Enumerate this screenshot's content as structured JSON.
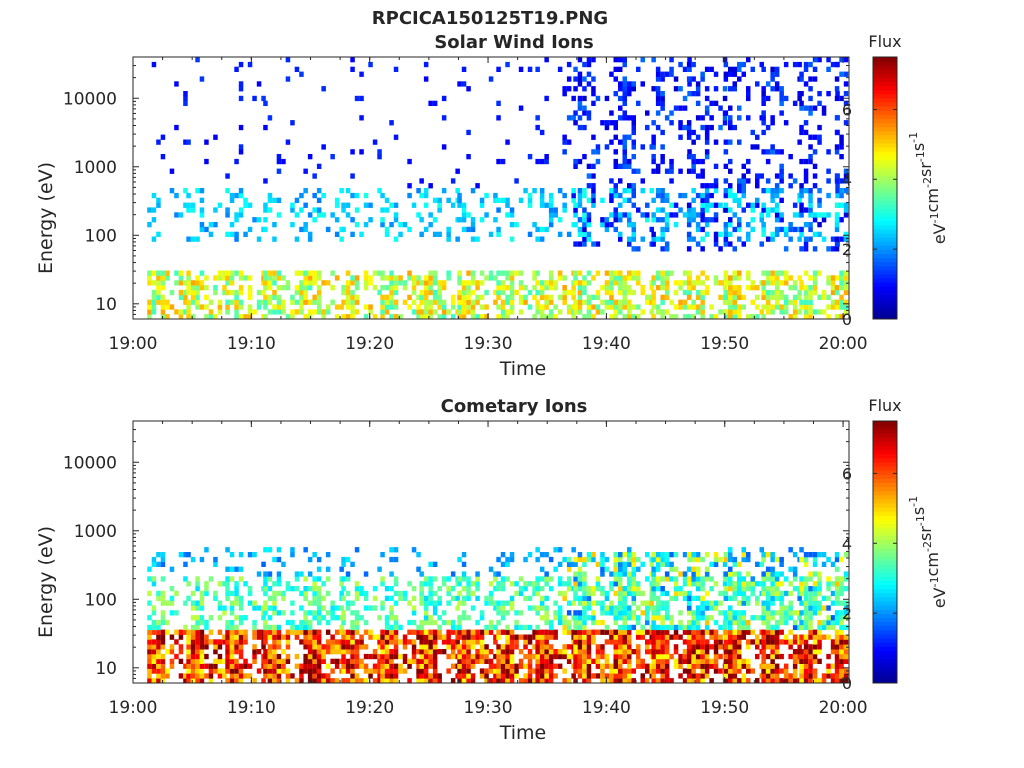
{
  "figure_title": "RPCICA150125T19.PNG",
  "colors": {
    "colormap": [
      "#00008f",
      "#0000ff",
      "#0080ff",
      "#00ffff",
      "#80ff80",
      "#ffff00",
      "#ff8000",
      "#ff0000",
      "#800000"
    ],
    "axes": "#262626",
    "background": "#ffffff"
  },
  "chart_data": [
    {
      "type": "heatmap",
      "title": "Solar Wind Ions",
      "xlabel": "Time",
      "ylabel": "Energy (eV)",
      "x_range": [
        "19:00",
        "20:00"
      ],
      "xticks": [
        "19:00",
        "19:10",
        "19:20",
        "19:30",
        "19:40",
        "19:50",
        "20:00"
      ],
      "y_scale": "log",
      "y_range": [
        6,
        40000
      ],
      "yticks": [
        10,
        100,
        1000,
        10000
      ],
      "ytick_labels": [
        "10",
        "100",
        "1000",
        "10000"
      ],
      "colorbar": {
        "title": "Flux",
        "unit_base": [
          "eV",
          "cm",
          "sr",
          "s"
        ],
        "unit_exp": [
          "-1",
          "-2",
          "-1",
          "-1"
        ],
        "range": [
          0,
          7.5
        ],
        "ticks": [
          "0",
          "2",
          "4",
          "6"
        ]
      },
      "sweep_start_minutes": [
        1.2,
        4.5,
        7.8,
        11.0,
        14.4,
        17.6,
        20.9,
        24.2,
        27.4,
        30.7,
        34.0,
        37.2,
        40.6,
        43.8,
        46.8,
        49.9,
        53.1,
        56.3,
        59.3
      ],
      "bands": [
        {
          "e_min": 6,
          "e_max": 30,
          "flux": 4.3,
          "coverage": 0.7
        },
        {
          "e_min": 80,
          "e_max": 500,
          "flux": 2.4,
          "coverage": 0.3
        },
        {
          "e_min": 500,
          "e_max": 40000,
          "flux": 1.1,
          "coverage": 0.05
        }
      ],
      "late_period": {
        "start_minute": 36.0,
        "e_min": 60,
        "e_max": 40000,
        "flux": 0.9,
        "coverage": 0.3
      }
    },
    {
      "type": "heatmap",
      "title": "Cometary Ions",
      "xlabel": "Time",
      "ylabel": "Energy (eV)",
      "x_range": [
        "19:00",
        "20:00"
      ],
      "xticks": [
        "19:00",
        "19:10",
        "19:20",
        "19:30",
        "19:40",
        "19:50",
        "20:00"
      ],
      "y_scale": "log",
      "y_range": [
        6,
        40000
      ],
      "yticks": [
        10,
        100,
        1000,
        10000
      ],
      "ytick_labels": [
        "10",
        "100",
        "1000",
        "10000"
      ],
      "colorbar": {
        "title": "Flux",
        "unit_base": [
          "eV",
          "cm",
          "sr",
          "s"
        ],
        "unit_exp": [
          "-1",
          "-2",
          "-1",
          "-1"
        ],
        "range": [
          0,
          7.5
        ],
        "ticks": [
          "0",
          "2",
          "4",
          "6"
        ]
      },
      "sweep_start_minutes": [
        1.2,
        4.5,
        7.8,
        11.0,
        14.4,
        17.6,
        20.9,
        24.2,
        27.4,
        30.7,
        34.0,
        37.2,
        40.6,
        43.8,
        46.8,
        49.9,
        53.1,
        56.3,
        59.3
      ],
      "bands": [
        {
          "e_min": 6,
          "e_max": 35,
          "flux": 6.2,
          "coverage": 0.95
        },
        {
          "e_min": 35,
          "e_max": 200,
          "flux": 3.4,
          "coverage": 0.55
        },
        {
          "e_min": 200,
          "e_max": 600,
          "flux": 2.2,
          "coverage": 0.2
        }
      ],
      "late_period": {
        "start_minute": 36.0,
        "e_min": 35,
        "e_max": 500,
        "flux": 2.6,
        "coverage": 0.55
      }
    }
  ]
}
